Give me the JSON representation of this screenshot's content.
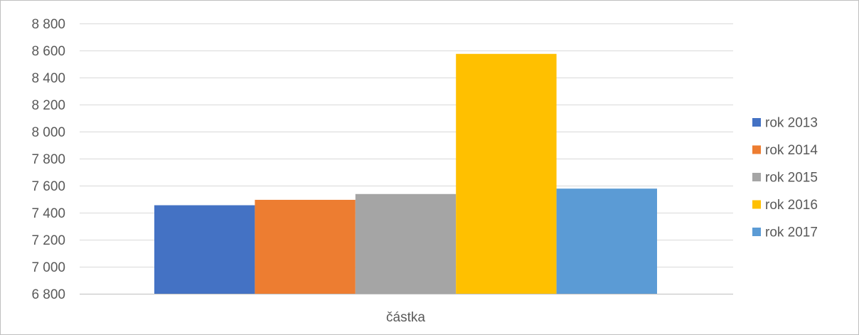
{
  "chart_data": {
    "type": "bar",
    "categories": [
      "částka"
    ],
    "series": [
      {
        "name": "rok 2013",
        "values": [
          7455
        ],
        "color": "#4472c4"
      },
      {
        "name": "rok 2014",
        "values": [
          7495
        ],
        "color": "#ed7d31"
      },
      {
        "name": "rok 2015",
        "values": [
          7538
        ],
        "color": "#a5a5a5"
      },
      {
        "name": "rok 2016",
        "values": [
          8575
        ],
        "color": "#ffc000"
      },
      {
        "name": "rok 2017",
        "values": [
          7578
        ],
        "color": "#5b9bd5"
      }
    ],
    "ylim": [
      6800,
      8800
    ],
    "yticks": [
      6800,
      7000,
      7200,
      7400,
      7600,
      7800,
      8000,
      8200,
      8400,
      8600,
      8800
    ],
    "ytick_labels": [
      "6 800",
      "7 000",
      "7 200",
      "7 400",
      "7 600",
      "7 800",
      "8 000",
      "8 200",
      "8 400",
      "8 600",
      "8 800"
    ],
    "title": "",
    "xlabel": "",
    "ylabel": "",
    "grid": true,
    "legend_position": "right",
    "gridline_color": "#d9d9d9",
    "axis_color": "#bfbfbf",
    "text_color": "#595959"
  }
}
